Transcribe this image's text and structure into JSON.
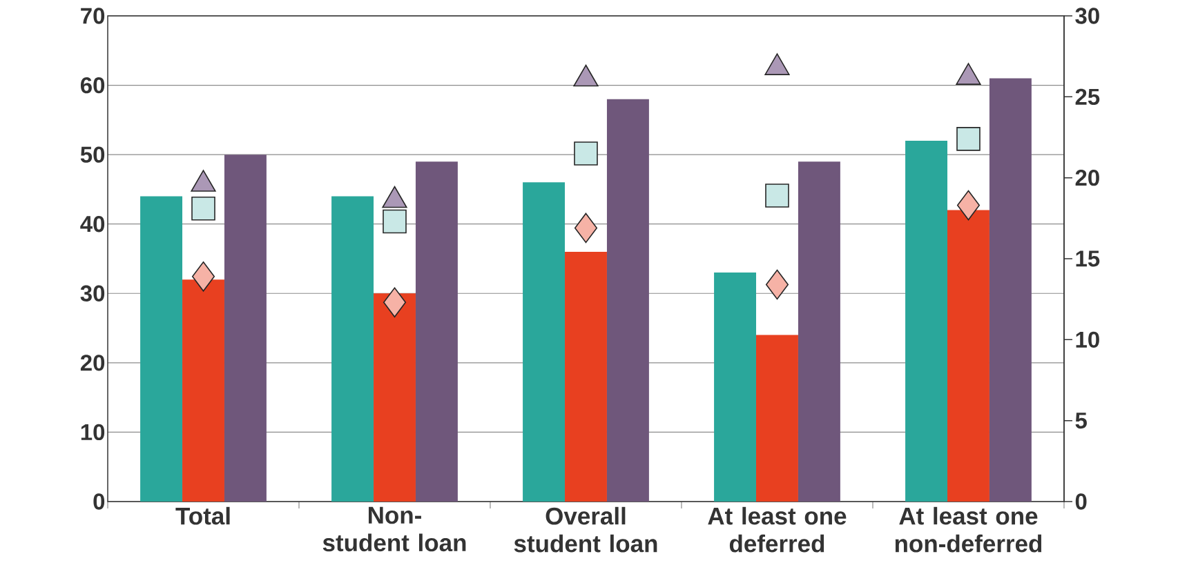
{
  "chart_data": {
    "type": "bar",
    "categories": [
      "Total",
      "Non-student loan",
      "Overall student loan",
      "At least one deferred",
      "At least one non-deferred"
    ],
    "series": [
      {
        "type": "bar",
        "color": "#2aa79b",
        "values": [
          44,
          44,
          46,
          33,
          52
        ]
      },
      {
        "type": "bar",
        "color": "#e84020",
        "values": [
          32,
          30,
          36,
          24,
          42
        ]
      },
      {
        "type": "bar",
        "color": "#6f577b",
        "values": [
          50,
          49,
          58,
          49,
          61
        ]
      },
      {
        "type": "scatter",
        "axis": "y2",
        "marker": "triangle",
        "color": "#ab98b6",
        "values": [
          19.6,
          18.6,
          26.1,
          26.8,
          26.2
        ]
      },
      {
        "type": "scatter",
        "axis": "y2",
        "marker": "square",
        "color": "#c9e8e6",
        "values": [
          18.1,
          17.3,
          21.5,
          18.9,
          22.4
        ]
      },
      {
        "type": "scatter",
        "axis": "y2",
        "marker": "diamond",
        "color": "#f6b2a6",
        "values": [
          13.9,
          12.3,
          16.9,
          13.4,
          18.3
        ]
      }
    ],
    "ylim": [
      0,
      70
    ],
    "yticks": [
      0,
      10,
      20,
      30,
      40,
      50,
      60,
      70
    ],
    "y2lim": [
      0,
      30
    ],
    "y2ticks": [
      0,
      5,
      10,
      15,
      20,
      25,
      30
    ],
    "grid": "y"
  }
}
